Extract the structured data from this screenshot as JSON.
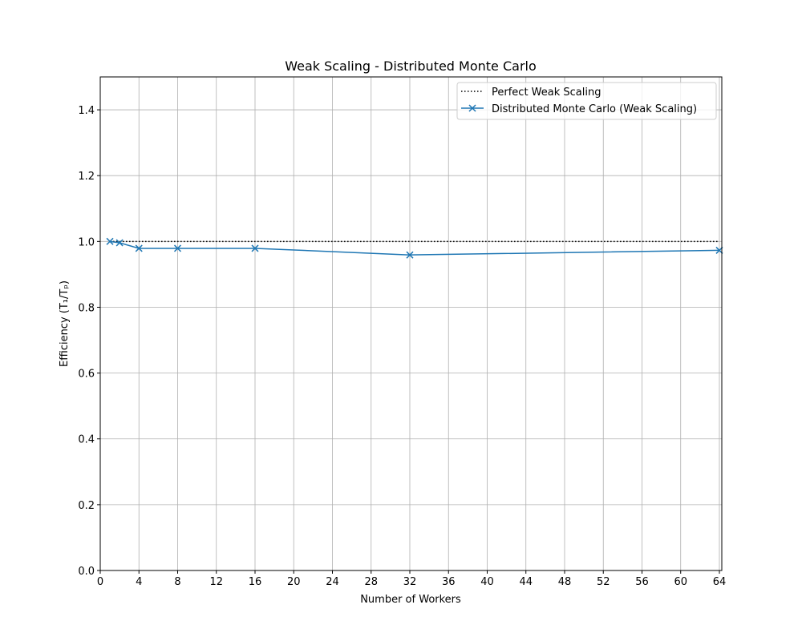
{
  "chart_data": {
    "type": "line",
    "title": "Weak Scaling - Distributed Monte Carlo",
    "xlabel": "Number of Workers",
    "ylabel": "Efficiency (T₁/Tₚ)",
    "xlim": [
      0,
      64.25
    ],
    "ylim": [
      0,
      1.5
    ],
    "xticks": [
      0,
      4,
      8,
      12,
      16,
      20,
      24,
      28,
      32,
      36,
      40,
      44,
      48,
      52,
      56,
      60,
      64
    ],
    "yticks": [
      0.0,
      0.2,
      0.4,
      0.6,
      0.8,
      1.0,
      1.2,
      1.4
    ],
    "xtick_labels": [
      "0",
      "4",
      "8",
      "12",
      "16",
      "20",
      "24",
      "28",
      "32",
      "36",
      "40",
      "44",
      "48",
      "52",
      "56",
      "60",
      "64"
    ],
    "ytick_labels": [
      "0.0",
      "0.2",
      "0.4",
      "0.6",
      "0.8",
      "1.0",
      "1.2",
      "1.4"
    ],
    "grid": true,
    "legend_position": "top-right",
    "series": [
      {
        "name": "Perfect Weak Scaling",
        "style": "dotted",
        "color": "#000000",
        "x": [
          1,
          64
        ],
        "y": [
          1.0,
          1.0
        ]
      },
      {
        "name": "Distributed Monte Carlo (Weak Scaling)",
        "style": "solid",
        "marker": "x",
        "color": "#1f77b4",
        "x": [
          1,
          2,
          4,
          8,
          16,
          32,
          64
        ],
        "y": [
          1.0,
          0.996,
          0.979,
          0.979,
          0.979,
          0.959,
          0.973
        ]
      }
    ]
  }
}
